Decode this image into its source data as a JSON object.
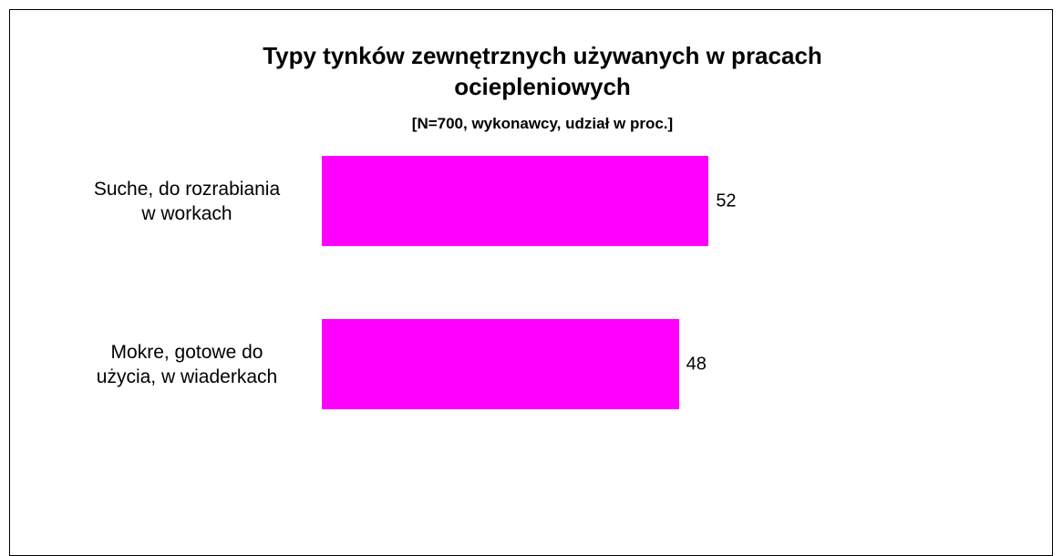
{
  "chart_data": {
    "type": "bar",
    "orientation": "horizontal",
    "title": "Typy tynków zewnętrznych używanych w pracach\nociepleniowych",
    "subtitle": "[N=700, wykonawcy, udział w proc.]",
    "categories": [
      "Suche, do rozrabiania\nw workach",
      "Mokre, gotowe do\nużycia, w wiaderkach"
    ],
    "values": [
      52,
      48
    ],
    "color": "#ff00ff"
  }
}
